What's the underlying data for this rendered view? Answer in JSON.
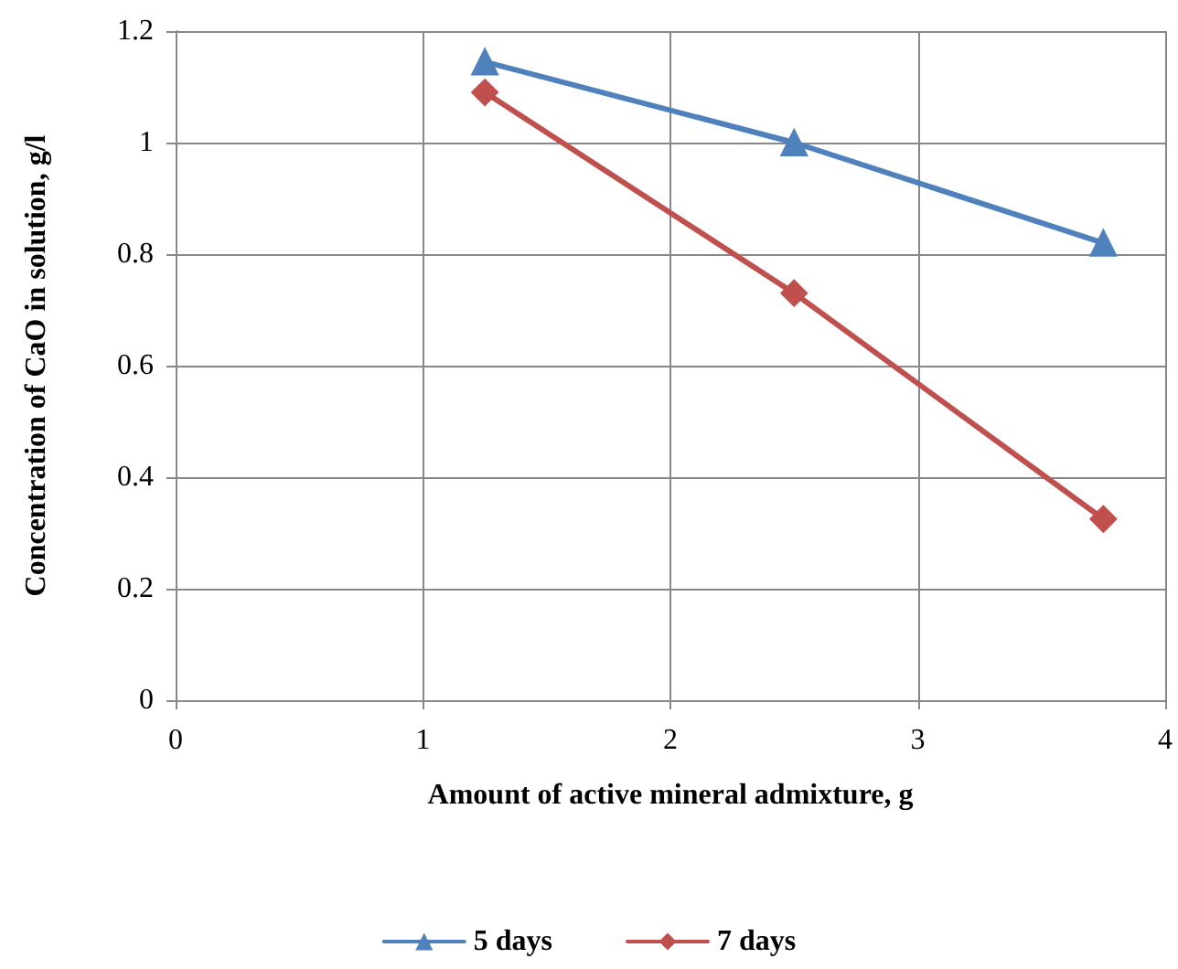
{
  "chart_data": {
    "type": "line",
    "xlabel": "Amount of active mineral admixture, g",
    "ylabel": "Concentration of CaO in solution, g/l",
    "x": [
      1.25,
      2.5,
      3.75
    ],
    "series": [
      {
        "name": "5 days",
        "color": "#4f81bd",
        "values": [
          1.145,
          1.0,
          0.82
        ],
        "marker": "triangle"
      },
      {
        "name": "7 days",
        "color": "#c0504d",
        "values": [
          1.09,
          0.73,
          0.325
        ],
        "marker": "diamond"
      }
    ],
    "xlim": [
      0,
      4
    ],
    "xticks": [
      0,
      1,
      2,
      3,
      4
    ],
    "ylim": [
      0,
      1.2
    ],
    "yticks": [
      0,
      0.2,
      0.4,
      0.6,
      0.8,
      1,
      1.2
    ],
    "grid": true,
    "legend": "bottom",
    "line_style": "solid"
  }
}
